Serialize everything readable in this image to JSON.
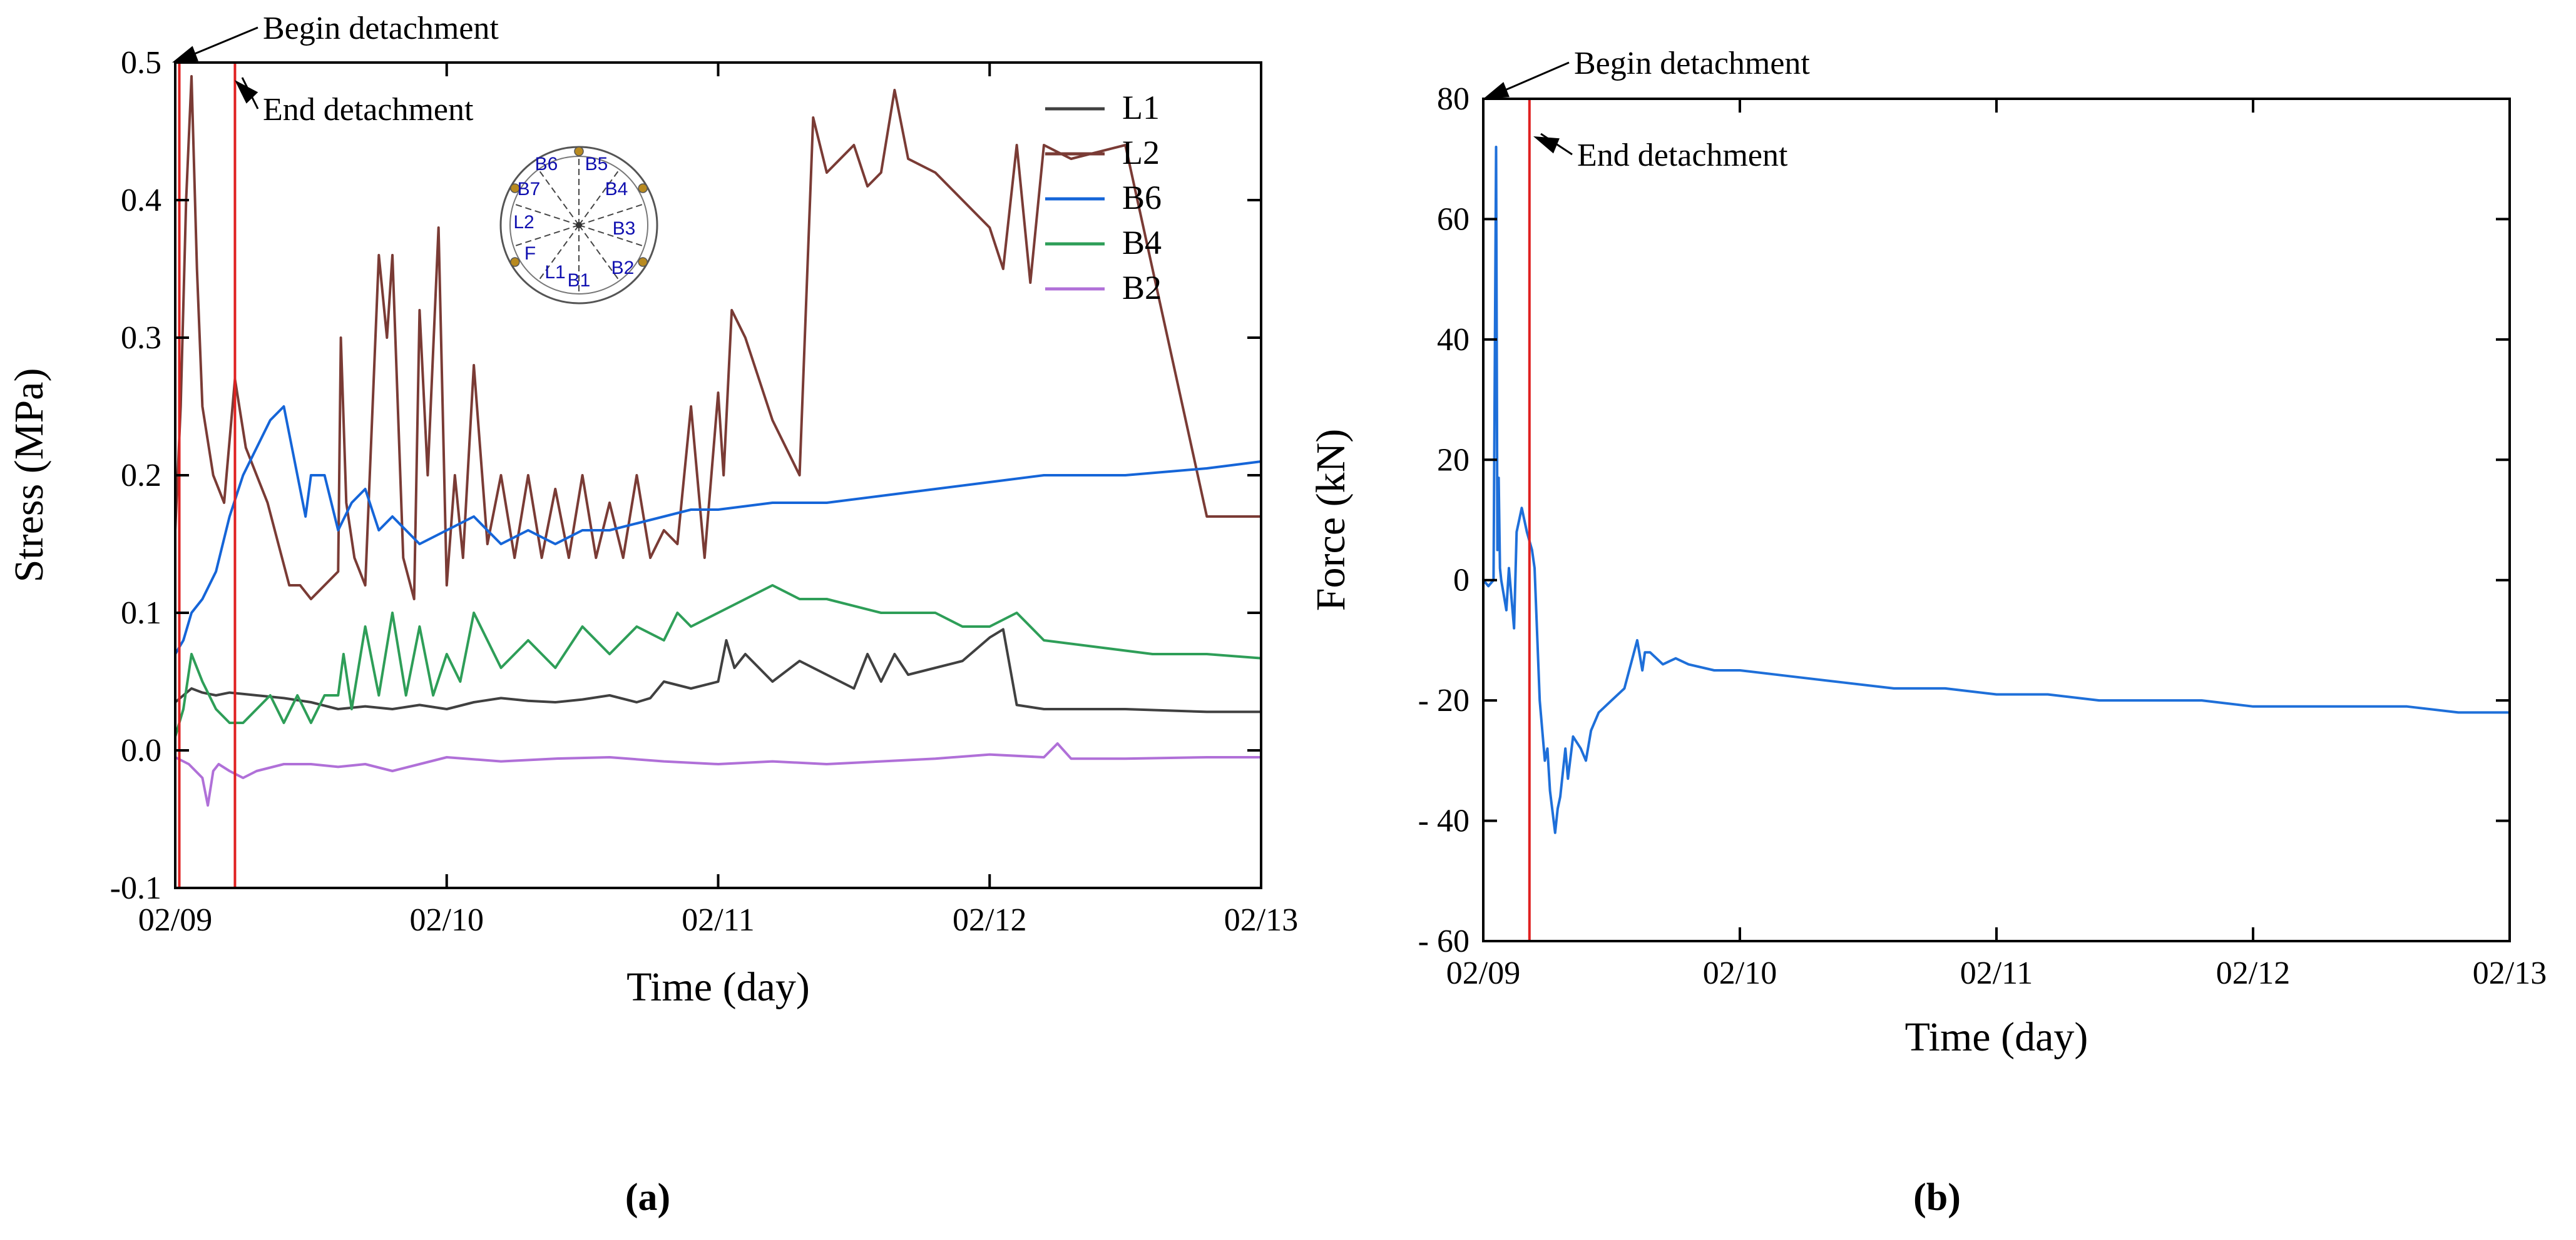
{
  "figure": {
    "panel_a_label": "(a)",
    "panel_b_label": "(b)"
  },
  "colors": {
    "L1": "#404040",
    "L2": "#7a3b35",
    "B6": "#1565d8",
    "B4": "#2e9e58",
    "B2": "#b070d8",
    "force": "#1e6fd9",
    "marker_line": "#e02020",
    "axis": "#000000",
    "inset_label": "#1010b0",
    "inset_dot": "#b88a20"
  },
  "chart_data": [
    {
      "type": "line",
      "panel": "a",
      "title": "",
      "xlabel": "Time (day)",
      "ylabel": "Stress (MPa)",
      "xlim": [
        0,
        4
      ],
      "ylim": [
        -0.1,
        0.5
      ],
      "xticks": [
        0,
        1,
        2,
        3,
        4
      ],
      "xtick_labels": [
        "02/09",
        "02/10",
        "02/11",
        "02/12",
        "02/13"
      ],
      "yticks": [
        -0.1,
        0.0,
        0.1,
        0.2,
        0.3,
        0.4,
        0.5
      ],
      "ytick_labels": [
        "-0.1",
        "0.0",
        "0.1",
        "0.2",
        "0.3",
        "0.4",
        "0.5"
      ],
      "legend": [
        "L1",
        "L2",
        "B6",
        "B4",
        "B2"
      ],
      "legend_position": "top-right",
      "vlines": [
        {
          "x": 0.015,
          "label": "Begin detachment"
        },
        {
          "x": 0.22,
          "label": "End detachment"
        }
      ],
      "inset": {
        "description_labels": [
          "B6",
          "B5",
          "B7",
          "B4",
          "B3",
          "L2",
          "F",
          "L1",
          "B1",
          "B2"
        ]
      },
      "series": [
        {
          "name": "L1",
          "x": [
            0,
            0.03,
            0.06,
            0.1,
            0.15,
            0.2,
            0.3,
            0.4,
            0.5,
            0.6,
            0.7,
            0.8,
            0.9,
            1.0,
            1.1,
            1.2,
            1.3,
            1.4,
            1.5,
            1.6,
            1.7,
            1.75,
            1.8,
            1.9,
            2.0,
            2.03,
            2.06,
            2.1,
            2.2,
            2.3,
            2.4,
            2.5,
            2.55,
            2.6,
            2.65,
            2.7,
            2.8,
            2.9,
            3.0,
            3.05,
            3.1,
            3.2,
            3.5,
            3.8,
            4.0
          ],
          "y": [
            0.035,
            0.04,
            0.045,
            0.042,
            0.04,
            0.042,
            0.04,
            0.038,
            0.035,
            0.03,
            0.032,
            0.03,
            0.033,
            0.03,
            0.035,
            0.038,
            0.036,
            0.035,
            0.037,
            0.04,
            0.035,
            0.038,
            0.05,
            0.045,
            0.05,
            0.08,
            0.06,
            0.07,
            0.05,
            0.065,
            0.055,
            0.045,
            0.07,
            0.05,
            0.07,
            0.055,
            0.06,
            0.065,
            0.082,
            0.088,
            0.033,
            0.03,
            0.03,
            0.028,
            0.028
          ]
        },
        {
          "name": "L2",
          "x": [
            0,
            0.02,
            0.04,
            0.06,
            0.08,
            0.1,
            0.14,
            0.18,
            0.22,
            0.26,
            0.3,
            0.34,
            0.38,
            0.42,
            0.46,
            0.5,
            0.55,
            0.6,
            0.61,
            0.63,
            0.66,
            0.7,
            0.75,
            0.78,
            0.8,
            0.84,
            0.88,
            0.9,
            0.93,
            0.97,
            1.0,
            1.03,
            1.06,
            1.1,
            1.15,
            1.2,
            1.25,
            1.3,
            1.35,
            1.4,
            1.45,
            1.5,
            1.55,
            1.6,
            1.65,
            1.7,
            1.75,
            1.8,
            1.85,
            1.9,
            1.95,
            2.0,
            2.02,
            2.05,
            2.1,
            2.2,
            2.3,
            2.35,
            2.4,
            2.5,
            2.55,
            2.6,
            2.65,
            2.7,
            2.8,
            2.9,
            3.0,
            3.05,
            3.1,
            3.15,
            3.2,
            3.3,
            3.5,
            3.8,
            4.0
          ],
          "y": [
            0.16,
            0.25,
            0.4,
            0.49,
            0.35,
            0.25,
            0.2,
            0.18,
            0.27,
            0.22,
            0.2,
            0.18,
            0.15,
            0.12,
            0.12,
            0.11,
            0.12,
            0.13,
            0.3,
            0.18,
            0.14,
            0.12,
            0.36,
            0.3,
            0.36,
            0.14,
            0.11,
            0.32,
            0.2,
            0.38,
            0.12,
            0.2,
            0.14,
            0.28,
            0.15,
            0.2,
            0.14,
            0.2,
            0.14,
            0.19,
            0.14,
            0.2,
            0.14,
            0.18,
            0.14,
            0.2,
            0.14,
            0.16,
            0.15,
            0.25,
            0.14,
            0.26,
            0.2,
            0.32,
            0.3,
            0.24,
            0.2,
            0.46,
            0.42,
            0.44,
            0.41,
            0.42,
            0.48,
            0.43,
            0.42,
            0.4,
            0.38,
            0.35,
            0.44,
            0.34,
            0.44,
            0.43,
            0.44,
            0.17,
            0.17
          ]
        },
        {
          "name": "B6",
          "x": [
            0,
            0.03,
            0.06,
            0.1,
            0.15,
            0.2,
            0.25,
            0.3,
            0.35,
            0.4,
            0.45,
            0.48,
            0.5,
            0.55,
            0.6,
            0.65,
            0.7,
            0.75,
            0.8,
            0.9,
            1.0,
            1.1,
            1.2,
            1.3,
            1.4,
            1.5,
            1.6,
            1.7,
            1.8,
            1.9,
            2.0,
            2.2,
            2.4,
            2.6,
            2.8,
            3.0,
            3.2,
            3.5,
            3.8,
            4.0
          ],
          "y": [
            0.07,
            0.08,
            0.1,
            0.11,
            0.13,
            0.17,
            0.2,
            0.22,
            0.24,
            0.25,
            0.2,
            0.17,
            0.2,
            0.2,
            0.16,
            0.18,
            0.19,
            0.16,
            0.17,
            0.15,
            0.16,
            0.17,
            0.15,
            0.16,
            0.15,
            0.16,
            0.16,
            0.165,
            0.17,
            0.175,
            0.175,
            0.18,
            0.18,
            0.185,
            0.19,
            0.195,
            0.2,
            0.2,
            0.205,
            0.21
          ]
        },
        {
          "name": "B4",
          "x": [
            0,
            0.03,
            0.06,
            0.1,
            0.15,
            0.2,
            0.25,
            0.3,
            0.35,
            0.4,
            0.45,
            0.5,
            0.55,
            0.6,
            0.62,
            0.65,
            0.7,
            0.75,
            0.8,
            0.85,
            0.9,
            0.95,
            1.0,
            1.05,
            1.1,
            1.2,
            1.3,
            1.4,
            1.5,
            1.6,
            1.7,
            1.8,
            1.85,
            1.9,
            2.0,
            2.1,
            2.2,
            2.3,
            2.4,
            2.6,
            2.8,
            2.9,
            3.0,
            3.1,
            3.2,
            3.4,
            3.6,
            3.8,
            4.0
          ],
          "y": [
            0.01,
            0.03,
            0.07,
            0.05,
            0.03,
            0.02,
            0.02,
            0.03,
            0.04,
            0.02,
            0.04,
            0.02,
            0.04,
            0.04,
            0.07,
            0.03,
            0.09,
            0.04,
            0.1,
            0.04,
            0.09,
            0.04,
            0.07,
            0.05,
            0.1,
            0.06,
            0.08,
            0.06,
            0.09,
            0.07,
            0.09,
            0.08,
            0.1,
            0.09,
            0.1,
            0.11,
            0.12,
            0.11,
            0.11,
            0.1,
            0.1,
            0.09,
            0.09,
            0.1,
            0.08,
            0.075,
            0.07,
            0.07,
            0.067
          ]
        },
        {
          "name": "B2",
          "x": [
            0,
            0.05,
            0.1,
            0.12,
            0.14,
            0.16,
            0.2,
            0.25,
            0.3,
            0.4,
            0.5,
            0.6,
            0.7,
            0.8,
            0.9,
            1.0,
            1.2,
            1.4,
            1.6,
            1.8,
            2.0,
            2.2,
            2.4,
            2.6,
            2.8,
            3.0,
            3.2,
            3.25,
            3.3,
            3.5,
            3.8,
            4.0
          ],
          "y": [
            -0.005,
            -0.01,
            -0.02,
            -0.04,
            -0.015,
            -0.01,
            -0.015,
            -0.02,
            -0.015,
            -0.01,
            -0.01,
            -0.012,
            -0.01,
            -0.015,
            -0.01,
            -0.005,
            -0.008,
            -0.006,
            -0.005,
            -0.008,
            -0.01,
            -0.008,
            -0.01,
            -0.008,
            -0.006,
            -0.003,
            -0.005,
            0.005,
            -0.006,
            -0.006,
            -0.005,
            -0.005
          ]
        }
      ]
    },
    {
      "type": "line",
      "panel": "b",
      "title": "",
      "xlabel": "Time (day)",
      "ylabel": "Force (kN)",
      "xlim": [
        0,
        4
      ],
      "ylim": [
        -60,
        80
      ],
      "xticks": [
        0,
        1,
        2,
        3,
        4
      ],
      "xtick_labels": [
        "02/09",
        "02/10",
        "02/11",
        "02/12",
        "02/13"
      ],
      "yticks": [
        -60,
        -40,
        -20,
        0,
        20,
        40,
        60,
        80
      ],
      "ytick_labels": [
        "- 60",
        "- 40",
        "- 20",
        "0",
        "20",
        "40",
        "60",
        "80"
      ],
      "vlines": [
        {
          "x": 0.0,
          "label": "Begin detachment"
        },
        {
          "x": 0.18,
          "label": "End detachment"
        }
      ],
      "series": [
        {
          "name": "Force",
          "x": [
            0,
            0.02,
            0.04,
            0.05,
            0.055,
            0.06,
            0.065,
            0.07,
            0.09,
            0.1,
            0.12,
            0.13,
            0.15,
            0.17,
            0.19,
            0.2,
            0.22,
            0.24,
            0.25,
            0.26,
            0.28,
            0.29,
            0.3,
            0.32,
            0.33,
            0.35,
            0.38,
            0.4,
            0.42,
            0.45,
            0.5,
            0.55,
            0.6,
            0.62,
            0.63,
            0.65,
            0.7,
            0.75,
            0.8,
            0.9,
            1.0,
            1.2,
            1.4,
            1.6,
            1.8,
            2.0,
            2.2,
            2.4,
            2.6,
            2.8,
            3.0,
            3.2,
            3.4,
            3.6,
            3.8,
            4.0
          ],
          "y": [
            0,
            -1,
            0,
            72,
            5,
            17,
            2,
            0,
            -5,
            2,
            -8,
            8,
            12,
            8,
            5,
            2,
            -20,
            -30,
            -28,
            -35,
            -42,
            -38,
            -36,
            -28,
            -33,
            -26,
            -28,
            -30,
            -25,
            -22,
            -20,
            -18,
            -10,
            -15,
            -12,
            -12,
            -14,
            -13,
            -14,
            -15,
            -15,
            -16,
            -17,
            -18,
            -18,
            -19,
            -19,
            -20,
            -20,
            -20,
            -21,
            -21,
            -21,
            -21,
            -22,
            -22
          ]
        }
      ]
    }
  ]
}
